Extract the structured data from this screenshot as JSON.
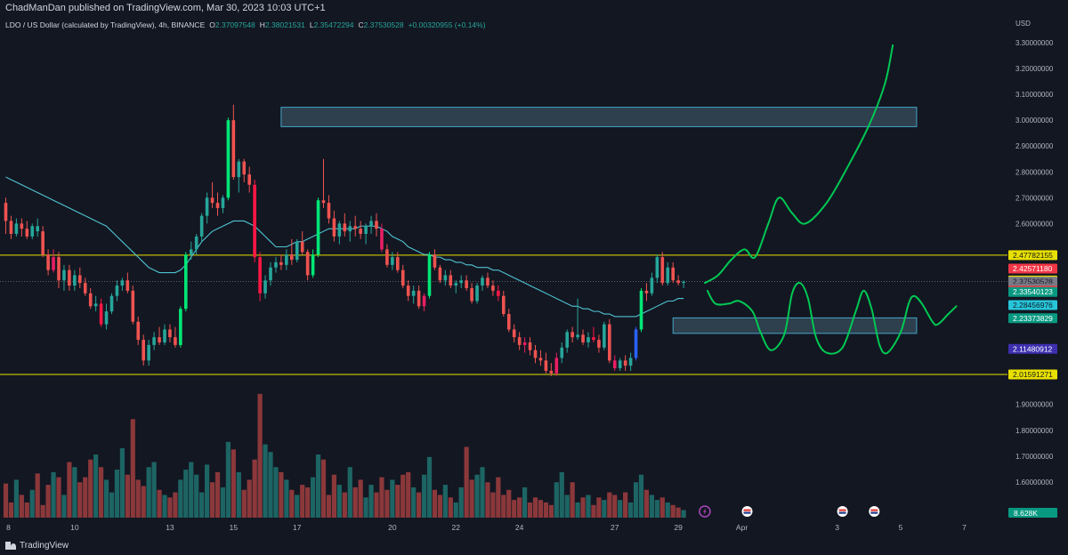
{
  "header": {
    "publisher": "ChadManDan published on TradingView.com, Mar 30, 2023 10:03 UTC+1",
    "symbol": "LDO / US Dollar (calculated by TradingView), 4h, BINANCE",
    "open_label": "O",
    "open": "2.37097548",
    "high_label": "H",
    "high": "2.38021531",
    "low_label": "L",
    "low": "2.35472294",
    "close_label": "C",
    "close": "2.37530528",
    "change": "+0.00320955 (+0.14%)",
    "currency": "USD"
  },
  "footer": {
    "brand": "TradingView"
  },
  "colors": {
    "background": "#131722",
    "up": "#26a69a",
    "down": "#ef5350",
    "up_bright": "#00e676",
    "down_bright": "#ff1744",
    "magenta": "#e91e63",
    "blue": "#2962ff",
    "ma": "#4fc3d1",
    "drawing": "#00c853",
    "level_line": "#e8e000",
    "zone": "#42a5c6"
  },
  "chart_data": {
    "type": "candlestick",
    "price_axis": {
      "range": [
        1.54,
        3.33
      ],
      "ticks": [
        "3.30000000",
        "3.20000000",
        "3.10000000",
        "3.00000000",
        "2.90000000",
        "2.80000000",
        "2.70000000",
        "2.60000000",
        "1.90000000",
        "1.80000000",
        "1.70000000",
        "1.60000000"
      ]
    },
    "time_axis": {
      "ticks": [
        {
          "label": "8",
          "i": 0.5
        },
        {
          "label": "10",
          "i": 13
        },
        {
          "label": "13",
          "i": 31
        },
        {
          "label": "15",
          "i": 43
        },
        {
          "label": "17",
          "i": 55
        },
        {
          "label": "20",
          "i": 73
        },
        {
          "label": "22",
          "i": 85
        },
        {
          "label": "24",
          "i": 97
        },
        {
          "label": "27",
          "i": 115
        },
        {
          "label": "29",
          "i": 127
        },
        {
          "label": "Apr",
          "i": 139
        },
        {
          "label": "3",
          "i": 157
        },
        {
          "label": "5",
          "i": 169
        },
        {
          "label": "7",
          "i": 181
        }
      ]
    },
    "price_labels": [
      {
        "value": "2.47782155",
        "price": 2.4778,
        "bg": "#e8e000",
        "fg": "#131722"
      },
      {
        "value": "2.42571180",
        "price": 2.4257,
        "bg": "#f23645",
        "fg": "#ffffff"
      },
      {
        "value": "2.37961424",
        "price": 2.3796,
        "bg": "#e8e000",
        "fg": "#131722"
      },
      {
        "value": "2.37530528",
        "price": 2.3753,
        "bg": "#787b86",
        "fg": "#131722"
      },
      {
        "value": "02:56:13",
        "price": 2.3478,
        "bg": "#787b86",
        "fg": "#131722"
      },
      {
        "value": "2.34059183",
        "price": 2.3406,
        "bg": "#f23645",
        "fg": "#ffffff"
      },
      {
        "value": "2.33540123",
        "price": 2.3354,
        "bg": "#089981",
        "fg": "#ffffff"
      },
      {
        "value": "2.28456976",
        "price": 2.2846,
        "bg": "#26c6da",
        "fg": "#131722"
      },
      {
        "value": "2.23373829",
        "price": 2.2337,
        "bg": "#089981",
        "fg": "#ffffff"
      },
      {
        "value": "2.11480912",
        "price": 2.1148,
        "bg": "#3d2fb0",
        "fg": "#ffffff"
      },
      {
        "value": "2.01591271",
        "price": 2.0159,
        "bg": "#e8e000",
        "fg": "#131722"
      }
    ],
    "volume_label": "8.628K",
    "horizontal_lines": [
      2.4778,
      2.0159
    ],
    "zones": [
      {
        "from_i": 52,
        "to_i": 172,
        "top": 3.05,
        "bottom": 2.975
      },
      {
        "from_i": 126,
        "to_i": 172,
        "top": 2.235,
        "bottom": 2.175
      }
    ],
    "event_markers": [
      {
        "i": 132,
        "type": "lightning"
      },
      {
        "i": 140,
        "type": "flag"
      },
      {
        "i": 158,
        "type": "flag"
      },
      {
        "i": 164,
        "type": "flag"
      }
    ],
    "candles": [
      [
        2.68,
        2.7,
        2.56,
        2.61
      ],
      [
        2.61,
        2.63,
        2.54,
        2.56
      ],
      [
        2.56,
        2.62,
        2.55,
        2.6
      ],
      [
        2.6,
        2.62,
        2.55,
        2.58
      ],
      [
        2.58,
        2.61,
        2.54,
        2.55
      ],
      [
        2.55,
        2.6,
        2.54,
        2.59
      ],
      [
        2.59,
        2.62,
        2.55,
        2.57
      ],
      [
        2.57,
        2.59,
        2.47,
        2.48
      ],
      [
        2.48,
        2.5,
        2.4,
        2.42
      ],
      [
        2.42,
        2.5,
        2.41,
        2.47
      ],
      [
        2.47,
        2.49,
        2.35,
        2.38
      ],
      [
        2.38,
        2.44,
        2.34,
        2.42
      ],
      [
        2.42,
        2.44,
        2.34,
        2.36
      ],
      [
        2.36,
        2.42,
        2.34,
        2.4
      ],
      [
        2.4,
        2.43,
        2.35,
        2.37
      ],
      [
        2.37,
        2.39,
        2.32,
        2.33
      ],
      [
        2.33,
        2.35,
        2.27,
        2.28
      ],
      [
        2.28,
        2.32,
        2.26,
        2.29
      ],
      [
        2.29,
        2.31,
        2.2,
        2.21
      ],
      [
        2.21,
        2.29,
        2.19,
        2.26
      ],
      [
        2.26,
        2.33,
        2.25,
        2.32
      ],
      [
        2.32,
        2.38,
        2.3,
        2.36
      ],
      [
        2.36,
        2.39,
        2.34,
        2.38
      ],
      [
        2.38,
        2.41,
        2.33,
        2.34
      ],
      [
        2.34,
        2.36,
        2.21,
        2.22
      ],
      [
        2.22,
        2.24,
        2.13,
        2.15
      ],
      [
        2.15,
        2.17,
        2.05,
        2.07
      ],
      [
        2.07,
        2.15,
        2.05,
        2.13
      ],
      [
        2.13,
        2.18,
        2.11,
        2.16
      ],
      [
        2.16,
        2.2,
        2.13,
        2.14
      ],
      [
        2.14,
        2.21,
        2.13,
        2.19
      ],
      [
        2.19,
        2.21,
        2.14,
        2.16
      ],
      [
        2.16,
        2.2,
        2.12,
        2.13
      ],
      [
        2.13,
        2.28,
        2.12,
        2.27
      ],
      [
        2.27,
        2.49,
        2.26,
        2.48
      ],
      [
        2.48,
        2.53,
        2.46,
        2.5
      ],
      [
        2.5,
        2.56,
        2.48,
        2.55
      ],
      [
        2.55,
        2.64,
        2.53,
        2.63
      ],
      [
        2.63,
        2.72,
        2.6,
        2.7
      ],
      [
        2.7,
        2.76,
        2.66,
        2.68
      ],
      [
        2.68,
        2.72,
        2.63,
        2.66
      ],
      [
        2.66,
        2.71,
        2.64,
        2.7
      ],
      [
        2.7,
        3.01,
        2.69,
        3.0
      ],
      [
        3.0,
        3.06,
        2.77,
        2.78
      ],
      [
        2.78,
        2.85,
        2.72,
        2.84
      ],
      [
        2.84,
        2.85,
        2.76,
        2.79
      ],
      [
        2.79,
        2.82,
        2.72,
        2.75
      ],
      [
        2.75,
        2.77,
        2.45,
        2.47
      ],
      [
        2.47,
        2.49,
        2.3,
        2.33
      ],
      [
        2.33,
        2.4,
        2.31,
        2.38
      ],
      [
        2.38,
        2.45,
        2.36,
        2.43
      ],
      [
        2.43,
        2.47,
        2.41,
        2.45
      ],
      [
        2.45,
        2.48,
        2.42,
        2.44
      ],
      [
        2.44,
        2.5,
        2.42,
        2.48
      ],
      [
        2.48,
        2.54,
        2.44,
        2.46
      ],
      [
        2.46,
        2.54,
        2.45,
        2.53
      ],
      [
        2.53,
        2.57,
        2.48,
        2.49
      ],
      [
        2.49,
        2.5,
        2.38,
        2.4
      ],
      [
        2.4,
        2.5,
        2.39,
        2.48
      ],
      [
        2.48,
        2.7,
        2.47,
        2.69
      ],
      [
        2.69,
        2.85,
        2.66,
        2.68
      ],
      [
        2.68,
        2.71,
        2.6,
        2.62
      ],
      [
        2.62,
        2.65,
        2.53,
        2.55
      ],
      [
        2.55,
        2.61,
        2.52,
        2.6
      ],
      [
        2.6,
        2.64,
        2.55,
        2.57
      ],
      [
        2.57,
        2.61,
        2.53,
        2.59
      ],
      [
        2.59,
        2.63,
        2.55,
        2.58
      ],
      [
        2.58,
        2.61,
        2.54,
        2.56
      ],
      [
        2.56,
        2.6,
        2.52,
        2.59
      ],
      [
        2.59,
        2.63,
        2.56,
        2.61
      ],
      [
        2.61,
        2.64,
        2.55,
        2.58
      ],
      [
        2.58,
        2.6,
        2.49,
        2.5
      ],
      [
        2.5,
        2.52,
        2.43,
        2.44
      ],
      [
        2.44,
        2.49,
        2.42,
        2.47
      ],
      [
        2.47,
        2.49,
        2.41,
        2.42
      ],
      [
        2.42,
        2.44,
        2.35,
        2.36
      ],
      [
        2.36,
        2.38,
        2.3,
        2.32
      ],
      [
        2.32,
        2.36,
        2.29,
        2.34
      ],
      [
        2.34,
        2.36,
        2.27,
        2.28
      ],
      [
        2.28,
        2.33,
        2.26,
        2.32
      ],
      [
        2.32,
        2.49,
        2.31,
        2.48
      ],
      [
        2.48,
        2.5,
        2.42,
        2.43
      ],
      [
        2.43,
        2.44,
        2.37,
        2.38
      ],
      [
        2.38,
        2.42,
        2.36,
        2.4
      ],
      [
        2.4,
        2.42,
        2.35,
        2.36
      ],
      [
        2.36,
        2.38,
        2.33,
        2.37
      ],
      [
        2.37,
        2.4,
        2.35,
        2.38
      ],
      [
        2.38,
        2.4,
        2.34,
        2.35
      ],
      [
        2.35,
        2.37,
        2.29,
        2.3
      ],
      [
        2.3,
        2.37,
        2.29,
        2.36
      ],
      [
        2.36,
        2.4,
        2.34,
        2.39
      ],
      [
        2.39,
        2.41,
        2.35,
        2.36
      ],
      [
        2.36,
        2.38,
        2.32,
        2.34
      ],
      [
        2.34,
        2.36,
        2.3,
        2.32
      ],
      [
        2.32,
        2.34,
        2.24,
        2.25
      ],
      [
        2.25,
        2.27,
        2.18,
        2.19
      ],
      [
        2.19,
        2.21,
        2.14,
        2.16
      ],
      [
        2.16,
        2.18,
        2.11,
        2.13
      ],
      [
        2.13,
        2.16,
        2.1,
        2.14
      ],
      [
        2.14,
        2.16,
        2.09,
        2.11
      ],
      [
        2.11,
        2.13,
        2.06,
        2.08
      ],
      [
        2.08,
        2.11,
        2.05,
        2.07
      ],
      [
        2.07,
        2.1,
        2.02,
        2.03
      ],
      [
        2.03,
        2.06,
        2.01,
        2.02
      ],
      [
        2.02,
        2.1,
        2.01,
        2.08
      ],
      [
        2.08,
        2.14,
        2.06,
        2.12
      ],
      [
        2.12,
        2.19,
        2.1,
        2.18
      ],
      [
        2.18,
        2.2,
        2.14,
        2.16
      ],
      [
        2.16,
        2.31,
        2.15,
        2.17
      ],
      [
        2.17,
        2.19,
        2.13,
        2.14
      ],
      [
        2.14,
        2.18,
        2.12,
        2.16
      ],
      [
        2.16,
        2.2,
        2.14,
        2.15
      ],
      [
        2.15,
        2.17,
        2.1,
        2.12
      ],
      [
        2.12,
        2.22,
        2.11,
        2.21
      ],
      [
        2.21,
        2.23,
        2.06,
        2.07
      ],
      [
        2.07,
        2.09,
        2.03,
        2.04
      ],
      [
        2.04,
        2.08,
        2.03,
        2.07
      ],
      [
        2.07,
        2.09,
        2.03,
        2.05
      ],
      [
        2.05,
        2.1,
        2.03,
        2.08
      ],
      [
        2.08,
        2.2,
        2.07,
        2.19
      ],
      [
        2.19,
        2.35,
        2.18,
        2.34
      ],
      [
        2.34,
        2.37,
        2.3,
        2.33
      ],
      [
        2.33,
        2.41,
        2.32,
        2.39
      ],
      [
        2.39,
        2.48,
        2.37,
        2.47
      ],
      [
        2.47,
        2.49,
        2.36,
        2.37
      ],
      [
        2.37,
        2.45,
        2.36,
        2.43
      ],
      [
        2.43,
        2.45,
        2.37,
        2.38
      ],
      [
        2.38,
        2.4,
        2.36,
        2.37
      ],
      [
        2.37,
        2.38,
        2.35,
        2.375
      ]
    ],
    "candle_colors": {
      "6": "#26a69a",
      "9": "#e91e63",
      "10": "#ef5350",
      "18": "#ff1744",
      "32": "#ef5350",
      "33": "#00e676",
      "34": "#00e676",
      "42": "#00e676",
      "47": "#ff1744",
      "48": "#ff1744",
      "58": "#00e676",
      "59": "#00e676",
      "71": "#e91e63",
      "79": "#e91e63",
      "80": "#00e676",
      "93": "#ff1744",
      "98": "#e91e63",
      "104": "#e91e63",
      "111": "#ff1744",
      "115": "#e91e63",
      "119": "#2962ff",
      "120": "#00e676"
    },
    "ma": [
      2.78,
      2.77,
      2.76,
      2.75,
      2.74,
      2.73,
      2.72,
      2.71,
      2.7,
      2.69,
      2.68,
      2.67,
      2.66,
      2.65,
      2.64,
      2.63,
      2.62,
      2.61,
      2.6,
      2.59,
      2.57,
      2.55,
      2.53,
      2.51,
      2.49,
      2.47,
      2.45,
      2.43,
      2.42,
      2.41,
      2.41,
      2.41,
      2.41,
      2.42,
      2.44,
      2.47,
      2.5,
      2.53,
      2.55,
      2.57,
      2.58,
      2.59,
      2.6,
      2.61,
      2.61,
      2.61,
      2.6,
      2.59,
      2.57,
      2.55,
      2.53,
      2.51,
      2.51,
      2.51,
      2.52,
      2.53,
      2.53,
      2.54,
      2.55,
      2.56,
      2.57,
      2.58,
      2.58,
      2.58,
      2.58,
      2.58,
      2.58,
      2.59,
      2.59,
      2.59,
      2.59,
      2.58,
      2.57,
      2.55,
      2.54,
      2.53,
      2.51,
      2.5,
      2.49,
      2.48,
      2.48,
      2.47,
      2.47,
      2.46,
      2.46,
      2.45,
      2.45,
      2.44,
      2.44,
      2.43,
      2.43,
      2.43,
      2.42,
      2.42,
      2.41,
      2.4,
      2.39,
      2.38,
      2.37,
      2.36,
      2.35,
      2.34,
      2.33,
      2.32,
      2.31,
      2.3,
      2.29,
      2.28,
      2.28,
      2.27,
      2.27,
      2.26,
      2.26,
      2.25,
      2.25,
      2.24,
      2.24,
      2.24,
      2.24,
      2.24,
      2.25,
      2.26,
      2.27,
      2.28,
      2.29,
      2.3,
      2.3,
      2.31,
      2.31
    ],
    "volume": [
      0.27,
      0.12,
      0.3,
      0.18,
      0.12,
      0.22,
      0.35,
      0.1,
      0.26,
      0.36,
      0.32,
      0.18,
      0.44,
      0.4,
      0.28,
      0.32,
      0.46,
      0.5,
      0.4,
      0.3,
      0.2,
      0.38,
      0.55,
      0.34,
      0.78,
      0.3,
      0.25,
      0.4,
      0.44,
      0.22,
      0.18,
      0.16,
      0.2,
      0.3,
      0.38,
      0.44,
      0.34,
      0.2,
      0.42,
      0.28,
      0.36,
      0.24,
      0.6,
      0.54,
      0.36,
      0.22,
      0.3,
      0.46,
      0.98,
      0.58,
      0.52,
      0.4,
      0.36,
      0.3,
      0.22,
      0.18,
      0.26,
      0.24,
      0.32,
      0.5,
      0.46,
      0.18,
      0.34,
      0.26,
      0.2,
      0.4,
      0.24,
      0.3,
      0.16,
      0.26,
      0.2,
      0.32,
      0.22,
      0.3,
      0.26,
      0.34,
      0.36,
      0.24,
      0.2,
      0.34,
      0.48,
      0.22,
      0.18,
      0.26,
      0.16,
      0.12,
      0.24,
      0.56,
      0.3,
      0.34,
      0.4,
      0.28,
      0.2,
      0.32,
      0.18,
      0.22,
      0.14,
      0.16,
      0.24,
      0.12,
      0.16,
      0.14,
      0.12,
      0.1,
      0.28,
      0.36,
      0.18,
      0.28,
      0.12,
      0.16,
      0.18,
      0.1,
      0.16,
      0.14,
      0.2,
      0.18,
      0.14,
      0.2,
      0.12,
      0.28,
      0.34,
      0.22,
      0.18,
      0.14,
      0.16,
      0.12,
      0.1,
      0.08,
      0.06
    ],
    "projections": [
      [
        [
          132,
          2.37
        ],
        [
          134.5,
          2.4
        ],
        [
          137,
          2.46
        ],
        [
          139.5,
          2.5
        ],
        [
          141.5,
          2.47
        ],
        [
          144,
          2.6
        ],
        [
          146,
          2.7
        ],
        [
          148.5,
          2.64
        ],
        [
          151,
          2.6
        ],
        [
          155,
          2.68
        ],
        [
          159,
          2.82
        ],
        [
          163,
          2.98
        ],
        [
          166,
          3.14
        ],
        [
          167.5,
          3.29
        ]
      ],
      [
        [
          132.5,
          2.34
        ],
        [
          134,
          2.29
        ],
        [
          136.5,
          2.29
        ],
        [
          138.5,
          2.3
        ],
        [
          141,
          2.26
        ],
        [
          142.5,
          2.18
        ],
        [
          144.5,
          2.11
        ],
        [
          147,
          2.17
        ],
        [
          148.5,
          2.33
        ],
        [
          150,
          2.37
        ],
        [
          151.5,
          2.31
        ],
        [
          153,
          2.16
        ],
        [
          155,
          2.1
        ],
        [
          158,
          2.12
        ],
        [
          160.5,
          2.26
        ],
        [
          162,
          2.34
        ],
        [
          163.5,
          2.27
        ],
        [
          165,
          2.13
        ],
        [
          166.5,
          2.1
        ],
        [
          169,
          2.18
        ],
        [
          170.5,
          2.29
        ],
        [
          171.5,
          2.32
        ],
        [
          173,
          2.29
        ],
        [
          175,
          2.22
        ],
        [
          176,
          2.21
        ],
        [
          178,
          2.25
        ],
        [
          179.5,
          2.28
        ]
      ]
    ]
  }
}
